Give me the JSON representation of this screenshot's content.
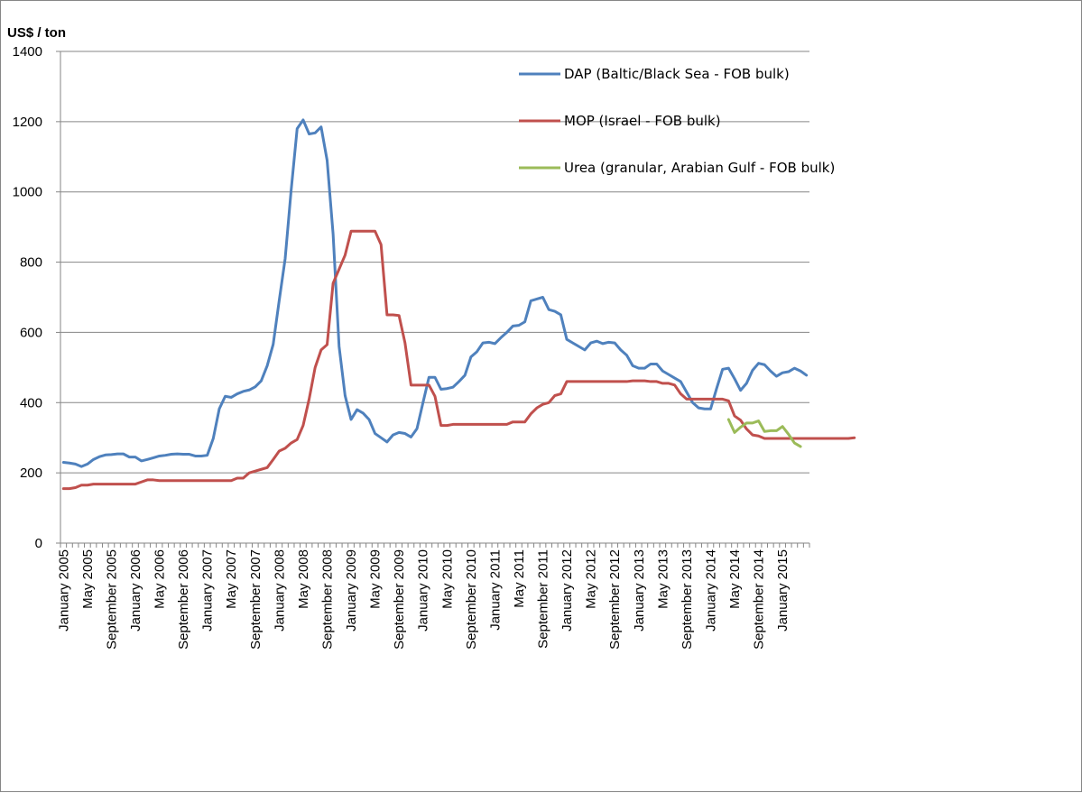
{
  "chart_data": {
    "type": "line",
    "title": "",
    "ylabel": "US$ / ton",
    "xlabel": "",
    "ylim": [
      0,
      1400
    ],
    "yticks": [
      0,
      200,
      400,
      600,
      800,
      1000,
      1200,
      1400
    ],
    "ytick_labels": [
      "0",
      "200",
      "400",
      "600",
      "800",
      "1000",
      "1200",
      "1400"
    ],
    "x_range": [
      "2005-01",
      "2015-05"
    ],
    "xtick_labels": [
      "January 2005",
      "May 2005",
      "September 2005",
      "January 2006",
      "May 2006",
      "September 2006",
      "January 2007",
      "May 2007",
      "September 2007",
      "January 2008",
      "May 2008",
      "September 2008",
      "January 2009",
      "May 2009",
      "September 2009",
      "January 2010",
      "May 2010",
      "September 2010",
      "January 2011",
      "May 2011",
      "September 2011",
      "January 2012",
      "May 2012",
      "September 2012",
      "January 2013",
      "May 2013",
      "September 2013",
      "January 2014",
      "May 2014",
      "September 2014",
      "January 2015"
    ],
    "grid": "horizontal",
    "legend_position": "top-right",
    "series": [
      {
        "name": "DAP (Baltic/Black Sea - FOB bulk)",
        "color": "#4F81BD",
        "start": "2005-01",
        "values": [
          230,
          228,
          225,
          218,
          225,
          238,
          246,
          251,
          252,
          254,
          254,
          245,
          245,
          234,
          238,
          243,
          248,
          250,
          253,
          254,
          253,
          253,
          248,
          248,
          250,
          298,
          382,
          418,
          415,
          425,
          432,
          436,
          445,
          462,
          505,
          566,
          690,
          810,
          1005,
          1180,
          1205,
          1165,
          1168,
          1185,
          1090,
          880,
          560,
          420,
          352,
          380,
          370,
          352,
          312,
          300,
          288,
          308,
          315,
          312,
          302,
          326,
          400,
          472,
          472,
          438,
          440,
          444,
          460,
          478,
          530,
          545,
          570,
          572,
          568,
          585,
          600,
          618,
          620,
          630,
          690,
          695,
          700,
          665,
          660,
          650,
          580,
          570,
          560,
          550,
          570,
          575,
          568,
          572,
          570,
          550,
          535,
          505,
          498,
          498,
          510,
          510,
          490,
          480,
          470,
          460,
          430,
          400,
          385,
          382,
          382,
          440,
          495,
          498,
          468,
          435,
          455,
          492,
          512,
          508,
          490,
          475,
          485,
          488,
          498,
          490,
          478
        ]
      },
      {
        "name": "MOP (Israel - FOB bulk)",
        "color": "#C0504D",
        "start": "2005-01",
        "values": [
          155,
          155,
          158,
          165,
          165,
          168,
          168,
          168,
          168,
          168,
          168,
          168,
          168,
          174,
          180,
          180,
          178,
          178,
          178,
          178,
          178,
          178,
          178,
          178,
          178,
          178,
          178,
          178,
          178,
          185,
          185,
          200,
          205,
          210,
          215,
          238,
          262,
          270,
          285,
          295,
          335,
          410,
          500,
          550,
          565,
          740,
          780,
          820,
          888,
          888,
          888,
          888,
          888,
          850,
          650,
          650,
          648,
          570,
          450,
          450,
          450,
          450,
          418,
          335,
          335,
          338,
          338,
          338,
          338,
          338,
          338,
          338,
          338,
          338,
          338,
          345,
          345,
          345,
          368,
          385,
          395,
          400,
          420,
          425,
          460,
          460,
          460,
          460,
          460,
          460,
          460,
          460,
          460,
          460,
          460,
          462,
          462,
          462,
          460,
          460,
          455,
          455,
          450,
          425,
          410,
          410,
          410,
          410,
          410,
          410,
          410,
          405,
          362,
          350,
          325,
          308,
          305,
          298,
          298,
          298,
          298,
          298,
          298,
          298,
          298,
          298,
          298,
          298,
          298,
          298,
          298,
          298,
          300
        ]
      },
      {
        "name": "Urea (granular, Arabian Gulf - FOB bulk)",
        "color": "#9BBB59",
        "start": "2014-04",
        "values": [
          352,
          315,
          330,
          342,
          342,
          348,
          318,
          320,
          320,
          332,
          310,
          285,
          275
        ]
      }
    ]
  }
}
